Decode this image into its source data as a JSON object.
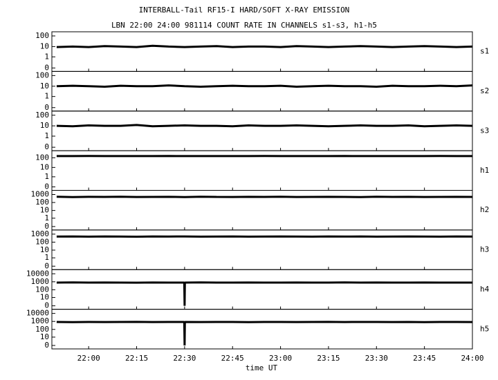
{
  "chart_data": {
    "type": "stacked-line",
    "title": "INTERBALL-Tail RF15-I HARD/SOFT X-RAY EMISSION",
    "subtitle": "LBN 22:00 24:00 981114  COUNT RATE IN CHANNELS s1-s3, h1-h5",
    "xlabel": "time UT",
    "xlim": [
      1308.5,
      1440
    ],
    "xticks": [
      {
        "value": 1320,
        "label": "22:00"
      },
      {
        "value": 1335,
        "label": "22:15"
      },
      {
        "value": 1350,
        "label": "22:30"
      },
      {
        "value": 1365,
        "label": "22:45"
      },
      {
        "value": 1380,
        "label": "23:00"
      },
      {
        "value": 1395,
        "label": "23:15"
      },
      {
        "value": 1410,
        "label": "23:30"
      },
      {
        "value": 1425,
        "label": "23:45"
      },
      {
        "value": 1440,
        "label": "24:00"
      }
    ],
    "color": "#000000",
    "panels": [
      {
        "type": "line",
        "name": "s1",
        "yscale": "log",
        "ylim": [
          0,
          100
        ],
        "yticks": [
          0,
          1,
          10,
          100
        ],
        "x": [
          1310,
          1315,
          1320,
          1325,
          1330,
          1335,
          1340,
          1345,
          1350,
          1355,
          1360,
          1365,
          1370,
          1375,
          1380,
          1385,
          1390,
          1395,
          1400,
          1405,
          1410,
          1415,
          1420,
          1425,
          1430,
          1435,
          1440
        ],
        "values": [
          9,
          10,
          9,
          11,
          10,
          9,
          12,
          10,
          9,
          10,
          11,
          9,
          10,
          10,
          9,
          11,
          10,
          9,
          10,
          11,
          10,
          9,
          10,
          11,
          10,
          9,
          10
        ]
      },
      {
        "type": "line",
        "name": "s2",
        "yscale": "log",
        "ylim": [
          0,
          100
        ],
        "yticks": [
          0,
          1,
          10,
          100
        ],
        "x": [
          1310,
          1315,
          1320,
          1325,
          1330,
          1335,
          1340,
          1345,
          1350,
          1355,
          1360,
          1365,
          1370,
          1375,
          1380,
          1385,
          1390,
          1395,
          1400,
          1405,
          1410,
          1415,
          1420,
          1425,
          1430,
          1435,
          1440
        ],
        "values": [
          10,
          11,
          10,
          9,
          11,
          10,
          10,
          12,
          10,
          9,
          10,
          11,
          10,
          10,
          11,
          9,
          10,
          11,
          10,
          10,
          9,
          11,
          10,
          10,
          11,
          10,
          12
        ]
      },
      {
        "type": "line",
        "name": "s3",
        "yscale": "log",
        "ylim": [
          0,
          100
        ],
        "yticks": [
          0,
          1,
          10,
          100
        ],
        "x": [
          1310,
          1315,
          1320,
          1325,
          1330,
          1335,
          1340,
          1345,
          1350,
          1355,
          1360,
          1365,
          1370,
          1375,
          1380,
          1385,
          1390,
          1395,
          1400,
          1405,
          1410,
          1415,
          1420,
          1425,
          1430,
          1435,
          1440
        ],
        "values": [
          10,
          9,
          11,
          10,
          10,
          12,
          9,
          10,
          11,
          10,
          10,
          9,
          11,
          10,
          10,
          11,
          10,
          9,
          10,
          11,
          10,
          10,
          11,
          9,
          10,
          11,
          10
        ]
      },
      {
        "type": "line",
        "name": "h1",
        "yscale": "log",
        "ylim": [
          0,
          200
        ],
        "yticks": [
          0,
          1,
          10,
          100
        ],
        "x": [
          1310,
          1315,
          1320,
          1325,
          1330,
          1335,
          1340,
          1345,
          1350,
          1355,
          1360,
          1365,
          1370,
          1375,
          1380,
          1385,
          1390,
          1395,
          1400,
          1405,
          1410,
          1415,
          1420,
          1425,
          1430,
          1435,
          1440
        ],
        "values": [
          150,
          150,
          151,
          150,
          149,
          150,
          150,
          151,
          150,
          149,
          150,
          150,
          150,
          151,
          150,
          149,
          150,
          150,
          151,
          150,
          150,
          149,
          150,
          150,
          151,
          150,
          150
        ]
      },
      {
        "type": "line",
        "name": "h2",
        "yscale": "log",
        "ylim": [
          0,
          1000
        ],
        "yticks": [
          0,
          1,
          10,
          100,
          1000
        ],
        "x": [
          1310,
          1315,
          1320,
          1325,
          1330,
          1335,
          1340,
          1345,
          1350,
          1355,
          1360,
          1365,
          1370,
          1375,
          1380,
          1385,
          1390,
          1395,
          1400,
          1405,
          1410,
          1415,
          1420,
          1425,
          1430,
          1435,
          1440
        ],
        "values": [
          520,
          480,
          510,
          500,
          530,
          490,
          500,
          510,
          480,
          520,
          500,
          490,
          510,
          500,
          520,
          490,
          500,
          510,
          500,
          480,
          520,
          500,
          510,
          490,
          500,
          510,
          500
        ]
      },
      {
        "type": "line",
        "name": "h3",
        "yscale": "log",
        "ylim": [
          0,
          1000
        ],
        "yticks": [
          0,
          1,
          10,
          100,
          1000
        ],
        "x": [
          1310,
          1315,
          1320,
          1325,
          1330,
          1335,
          1340,
          1345,
          1350,
          1355,
          1360,
          1365,
          1370,
          1375,
          1380,
          1385,
          1390,
          1395,
          1400,
          1405,
          1410,
          1415,
          1420,
          1425,
          1430,
          1435,
          1440
        ],
        "values": [
          500,
          520,
          490,
          510,
          500,
          480,
          510,
          500,
          520,
          490,
          500,
          510,
          490,
          500,
          510,
          500,
          490,
          520,
          500,
          510,
          490,
          500,
          510,
          500,
          490,
          510,
          500
        ]
      },
      {
        "type": "line",
        "name": "h4",
        "yscale": "log",
        "ylim": [
          0,
          10000
        ],
        "yticks": [
          0,
          10,
          100,
          1000,
          10000
        ],
        "x": [
          1310,
          1315,
          1320,
          1325,
          1330,
          1335,
          1340,
          1345,
          1349.9,
          1350,
          1350.1,
          1355,
          1360,
          1365,
          1370,
          1375,
          1380,
          1385,
          1390,
          1395,
          1400,
          1405,
          1410,
          1415,
          1420,
          1425,
          1430,
          1435,
          1440
        ],
        "values": [
          800,
          820,
          790,
          810,
          800,
          780,
          810,
          800,
          800,
          0,
          800,
          820,
          790,
          800,
          810,
          790,
          800,
          810,
          800,
          790,
          820,
          800,
          810,
          790,
          800,
          810,
          800,
          790,
          800
        ]
      },
      {
        "type": "line",
        "name": "h5",
        "yscale": "log",
        "ylim": [
          0,
          10000
        ],
        "yticks": [
          0,
          10,
          100,
          1000,
          10000
        ],
        "x": [
          1310,
          1315,
          1320,
          1325,
          1330,
          1335,
          1340,
          1345,
          1349.9,
          1350,
          1350.1,
          1355,
          1360,
          1365,
          1370,
          1375,
          1380,
          1385,
          1390,
          1395,
          1400,
          1405,
          1410,
          1415,
          1420,
          1425,
          1430,
          1435,
          1440
        ],
        "values": [
          850,
          830,
          860,
          840,
          850,
          870,
          840,
          850,
          850,
          0,
          850,
          840,
          860,
          850,
          830,
          850,
          860,
          840,
          850,
          870,
          840,
          850,
          860,
          840,
          850,
          830,
          860,
          850,
          840
        ]
      }
    ]
  }
}
